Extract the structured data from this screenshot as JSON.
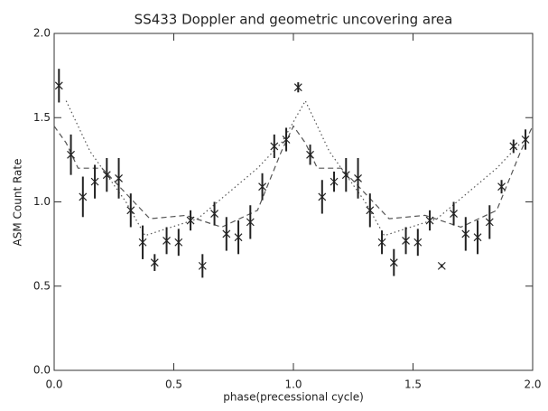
{
  "chart_data": {
    "type": "scatter",
    "title": "SS433 Doppler and geometric uncovering area",
    "xlabel": "phase(precessional cycle)",
    "ylabel": "ASM Count Rate",
    "xlim": [
      0,
      2
    ],
    "ylim": [
      0,
      2
    ],
    "xticks": [
      {
        "value": 0,
        "label": "0.0"
      },
      {
        "value": 0.5,
        "label": "0.5"
      },
      {
        "value": 1,
        "label": "1.0"
      },
      {
        "value": 1.5,
        "label": "1.5"
      },
      {
        "value": 2,
        "label": "2.0"
      }
    ],
    "yticks": [
      {
        "value": 0,
        "label": "0.0"
      },
      {
        "value": 0.5,
        "label": "0.5"
      },
      {
        "value": 1,
        "label": "1.0"
      },
      {
        "value": 1.5,
        "label": "1.5"
      },
      {
        "value": 2,
        "label": "2.0"
      }
    ],
    "color": "#222",
    "x": [
      0.02,
      0.07,
      0.12,
      0.17,
      0.22,
      0.27,
      0.32,
      0.37,
      0.42,
      0.47,
      0.52,
      0.57,
      0.62,
      0.67,
      0.72,
      0.77,
      0.82,
      0.87,
      0.92,
      0.97,
      1.02,
      1.07,
      1.12,
      1.17,
      1.22,
      1.27,
      1.32,
      1.37,
      1.42,
      1.47,
      1.52,
      1.57,
      1.62,
      1.67,
      1.72,
      1.77,
      1.82,
      1.87,
      1.92,
      1.97
    ],
    "values": [
      1.69,
      1.28,
      1.03,
      1.12,
      1.16,
      1.14,
      0.95,
      0.76,
      0.64,
      0.77,
      0.76,
      0.89,
      0.62,
      0.93,
      0.81,
      0.79,
      0.88,
      1.09,
      1.33,
      1.37,
      1.68,
      1.28,
      1.03,
      1.12,
      1.16,
      1.14,
      0.95,
      0.76,
      0.64,
      0.77,
      0.76,
      0.89,
      0.62,
      0.93,
      0.81,
      0.79,
      0.88,
      1.09,
      1.33,
      1.37
    ],
    "errors": [
      0.1,
      0.12,
      0.12,
      0.1,
      0.1,
      0.12,
      0.1,
      0.1,
      0.05,
      0.08,
      0.08,
      0.06,
      0.07,
      0.07,
      0.1,
      0.1,
      0.1,
      0.08,
      0.07,
      0.07,
      0.03,
      0.06,
      0.1,
      0.06,
      0.1,
      0.12,
      0.1,
      0.07,
      0.08,
      0.08,
      0.08,
      0.06,
      0.01,
      0.07,
      0.1,
      0.1,
      0.1,
      0.04,
      0.04,
      0.06
    ],
    "curves": [
      {
        "style": "dashed",
        "x": [
          0,
          0.05,
          0.1,
          0.2,
          0.3,
          0.4,
          0.55,
          0.7,
          0.85,
          0.95,
          1,
          1.05,
          1.1,
          1.2,
          1.3,
          1.4,
          1.55,
          1.7,
          1.85,
          1.95,
          2
        ],
        "values": [
          1.45,
          1.35,
          1.2,
          1.2,
          1.05,
          0.9,
          0.92,
          0.85,
          0.95,
          1.3,
          1.45,
          1.35,
          1.2,
          1.2,
          1.05,
          0.9,
          0.92,
          0.85,
          0.95,
          1.3,
          1.45
        ]
      },
      {
        "style": "dotted",
        "x": [
          0.05,
          0.15,
          0.3,
          0.38,
          0.6,
          0.85,
          0.95,
          1.05,
          1.15,
          1.3,
          1.38,
          1.6,
          1.85,
          1.95
        ],
        "values": [
          1.6,
          1.3,
          1.0,
          0.8,
          0.9,
          1.2,
          1.35,
          1.6,
          1.3,
          1.0,
          0.8,
          0.9,
          1.2,
          1.35
        ]
      }
    ]
  }
}
